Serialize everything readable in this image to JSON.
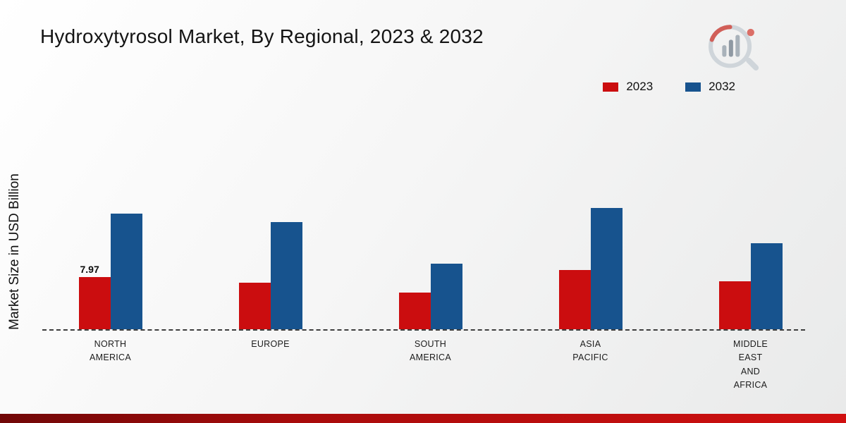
{
  "title": "Hydroxytyrosol Market, By Regional, 2023 & 2032",
  "y_axis_label": "Market Size in USD Billion",
  "accent_colors": {
    "series_2023": "#cb0d0f",
    "series_2032": "#17538e",
    "footer_red": "#c00d0d"
  },
  "chart_data": {
    "type": "bar",
    "title": "Hydroxytyrosol Market, By Regional, 2023 & 2032",
    "xlabel": "",
    "ylabel": "Market Size in USD Billion",
    "categories": [
      [
        "NORTH",
        "AMERICA"
      ],
      [
        "EUROPE"
      ],
      [
        "SOUTH",
        "AMERICA"
      ],
      [
        "ASIA",
        "PACIFIC"
      ],
      [
        "MIDDLE",
        "EAST",
        "AND",
        "AFRICA"
      ]
    ],
    "series": [
      {
        "name": "2023",
        "color": "#cb0d0f",
        "values": [
          7.97,
          7.1,
          5.6,
          9.0,
          7.3
        ],
        "labels": [
          "7.97",
          null,
          null,
          null,
          null
        ]
      },
      {
        "name": "2032",
        "color": "#17538e",
        "values": [
          17.6,
          16.3,
          10.0,
          18.5,
          13.1
        ],
        "labels": [
          null,
          null,
          null,
          null,
          null
        ]
      }
    ],
    "ylim": [
      0,
      20
    ],
    "grid": false,
    "legend_position": "top-right",
    "baseline_style": "dashed"
  }
}
